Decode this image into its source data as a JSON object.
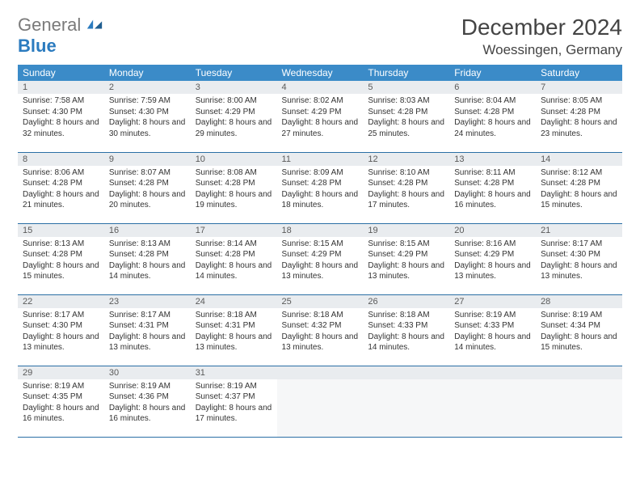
{
  "logo": {
    "text_gray": "General",
    "text_blue": "Blue"
  },
  "title": "December 2024",
  "location": "Woessingen, Germany",
  "colors": {
    "header_bg": "#3b8bc8",
    "header_text": "#ffffff",
    "daynum_bg": "#e9ecef",
    "row_divider": "#2b6fa5",
    "logo_blue": "#2b7bbf",
    "logo_gray": "#7a7a7a"
  },
  "day_headers": [
    "Sunday",
    "Monday",
    "Tuesday",
    "Wednesday",
    "Thursday",
    "Friday",
    "Saturday"
  ],
  "weeks": [
    [
      {
        "n": "1",
        "sunrise": "7:58 AM",
        "sunset": "4:30 PM",
        "daylight": "8 hours and 32 minutes."
      },
      {
        "n": "2",
        "sunrise": "7:59 AM",
        "sunset": "4:30 PM",
        "daylight": "8 hours and 30 minutes."
      },
      {
        "n": "3",
        "sunrise": "8:00 AM",
        "sunset": "4:29 PM",
        "daylight": "8 hours and 29 minutes."
      },
      {
        "n": "4",
        "sunrise": "8:02 AM",
        "sunset": "4:29 PM",
        "daylight": "8 hours and 27 minutes."
      },
      {
        "n": "5",
        "sunrise": "8:03 AM",
        "sunset": "4:28 PM",
        "daylight": "8 hours and 25 minutes."
      },
      {
        "n": "6",
        "sunrise": "8:04 AM",
        "sunset": "4:28 PM",
        "daylight": "8 hours and 24 minutes."
      },
      {
        "n": "7",
        "sunrise": "8:05 AM",
        "sunset": "4:28 PM",
        "daylight": "8 hours and 23 minutes."
      }
    ],
    [
      {
        "n": "8",
        "sunrise": "8:06 AM",
        "sunset": "4:28 PM",
        "daylight": "8 hours and 21 minutes."
      },
      {
        "n": "9",
        "sunrise": "8:07 AM",
        "sunset": "4:28 PM",
        "daylight": "8 hours and 20 minutes."
      },
      {
        "n": "10",
        "sunrise": "8:08 AM",
        "sunset": "4:28 PM",
        "daylight": "8 hours and 19 minutes."
      },
      {
        "n": "11",
        "sunrise": "8:09 AM",
        "sunset": "4:28 PM",
        "daylight": "8 hours and 18 minutes."
      },
      {
        "n": "12",
        "sunrise": "8:10 AM",
        "sunset": "4:28 PM",
        "daylight": "8 hours and 17 minutes."
      },
      {
        "n": "13",
        "sunrise": "8:11 AM",
        "sunset": "4:28 PM",
        "daylight": "8 hours and 16 minutes."
      },
      {
        "n": "14",
        "sunrise": "8:12 AM",
        "sunset": "4:28 PM",
        "daylight": "8 hours and 15 minutes."
      }
    ],
    [
      {
        "n": "15",
        "sunrise": "8:13 AM",
        "sunset": "4:28 PM",
        "daylight": "8 hours and 15 minutes."
      },
      {
        "n": "16",
        "sunrise": "8:13 AM",
        "sunset": "4:28 PM",
        "daylight": "8 hours and 14 minutes."
      },
      {
        "n": "17",
        "sunrise": "8:14 AM",
        "sunset": "4:28 PM",
        "daylight": "8 hours and 14 minutes."
      },
      {
        "n": "18",
        "sunrise": "8:15 AM",
        "sunset": "4:29 PM",
        "daylight": "8 hours and 13 minutes."
      },
      {
        "n": "19",
        "sunrise": "8:15 AM",
        "sunset": "4:29 PM",
        "daylight": "8 hours and 13 minutes."
      },
      {
        "n": "20",
        "sunrise": "8:16 AM",
        "sunset": "4:29 PM",
        "daylight": "8 hours and 13 minutes."
      },
      {
        "n": "21",
        "sunrise": "8:17 AM",
        "sunset": "4:30 PM",
        "daylight": "8 hours and 13 minutes."
      }
    ],
    [
      {
        "n": "22",
        "sunrise": "8:17 AM",
        "sunset": "4:30 PM",
        "daylight": "8 hours and 13 minutes."
      },
      {
        "n": "23",
        "sunrise": "8:17 AM",
        "sunset": "4:31 PM",
        "daylight": "8 hours and 13 minutes."
      },
      {
        "n": "24",
        "sunrise": "8:18 AM",
        "sunset": "4:31 PM",
        "daylight": "8 hours and 13 minutes."
      },
      {
        "n": "25",
        "sunrise": "8:18 AM",
        "sunset": "4:32 PM",
        "daylight": "8 hours and 13 minutes."
      },
      {
        "n": "26",
        "sunrise": "8:18 AM",
        "sunset": "4:33 PM",
        "daylight": "8 hours and 14 minutes."
      },
      {
        "n": "27",
        "sunrise": "8:19 AM",
        "sunset": "4:33 PM",
        "daylight": "8 hours and 14 minutes."
      },
      {
        "n": "28",
        "sunrise": "8:19 AM",
        "sunset": "4:34 PM",
        "daylight": "8 hours and 15 minutes."
      }
    ],
    [
      {
        "n": "29",
        "sunrise": "8:19 AM",
        "sunset": "4:35 PM",
        "daylight": "8 hours and 16 minutes."
      },
      {
        "n": "30",
        "sunrise": "8:19 AM",
        "sunset": "4:36 PM",
        "daylight": "8 hours and 16 minutes."
      },
      {
        "n": "31",
        "sunrise": "8:19 AM",
        "sunset": "4:37 PM",
        "daylight": "8 hours and 17 minutes."
      },
      null,
      null,
      null,
      null
    ]
  ],
  "labels": {
    "sunrise": "Sunrise: ",
    "sunset": "Sunset: ",
    "daylight": "Daylight: "
  }
}
